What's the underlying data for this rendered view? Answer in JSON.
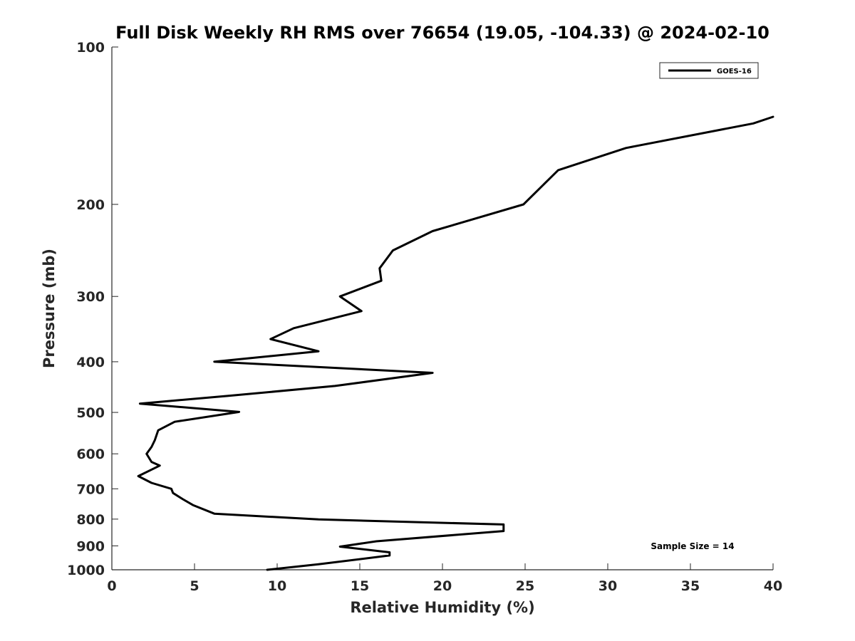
{
  "chart_data": {
    "type": "line",
    "title": "Full Disk Weekly RH RMS over 76654 (19.05, -104.33) @ 2024-02-10",
    "xlabel": "Relative Humidity (%)",
    "ylabel": "Pressure (mb)",
    "xlim": [
      0,
      40
    ],
    "ylim": [
      100,
      1000
    ],
    "yscale": "log",
    "y_reversed": true,
    "grid": false,
    "x_ticks": [
      0,
      5,
      10,
      15,
      20,
      25,
      30,
      35,
      40
    ],
    "y_ticks": [
      100,
      200,
      300,
      400,
      500,
      600,
      700,
      800,
      900,
      1000
    ],
    "legend": {
      "position": "top-right",
      "entries": [
        "GOES-16"
      ]
    },
    "annotation": "Sample Size = 14",
    "series": [
      {
        "name": "GOES-16",
        "color": "#000000",
        "points": [
          [
            40.0,
            136
          ],
          [
            38.8,
            140
          ],
          [
            31.1,
            156
          ],
          [
            27.0,
            172
          ],
          [
            24.9,
            200
          ],
          [
            19.4,
            225
          ],
          [
            17.0,
            245
          ],
          [
            16.2,
            265
          ],
          [
            16.3,
            280
          ],
          [
            13.8,
            300
          ],
          [
            15.1,
            320
          ],
          [
            11.0,
            345
          ],
          [
            9.6,
            362
          ],
          [
            12.5,
            382
          ],
          [
            6.2,
            400
          ],
          [
            19.4,
            420
          ],
          [
            13.5,
            445
          ],
          [
            7.0,
            465
          ],
          [
            1.7,
            481
          ],
          [
            7.7,
            499
          ],
          [
            3.8,
            521
          ],
          [
            2.8,
            541
          ],
          [
            2.6,
            565
          ],
          [
            2.4,
            582
          ],
          [
            2.1,
            600
          ],
          [
            2.4,
            622
          ],
          [
            2.9,
            632
          ],
          [
            1.6,
            662
          ],
          [
            2.4,
            682
          ],
          [
            3.6,
            700
          ],
          [
            3.7,
            713
          ],
          [
            4.3,
            733
          ],
          [
            4.9,
            752
          ],
          [
            6.2,
            781
          ],
          [
            12.5,
            801
          ],
          [
            23.7,
            819
          ],
          [
            23.7,
            843
          ],
          [
            16.0,
            882
          ],
          [
            13.8,
            903
          ],
          [
            16.8,
            926
          ],
          [
            16.8,
            939
          ],
          [
            12.5,
            976
          ],
          [
            9.4,
            1000
          ]
        ]
      }
    ]
  }
}
